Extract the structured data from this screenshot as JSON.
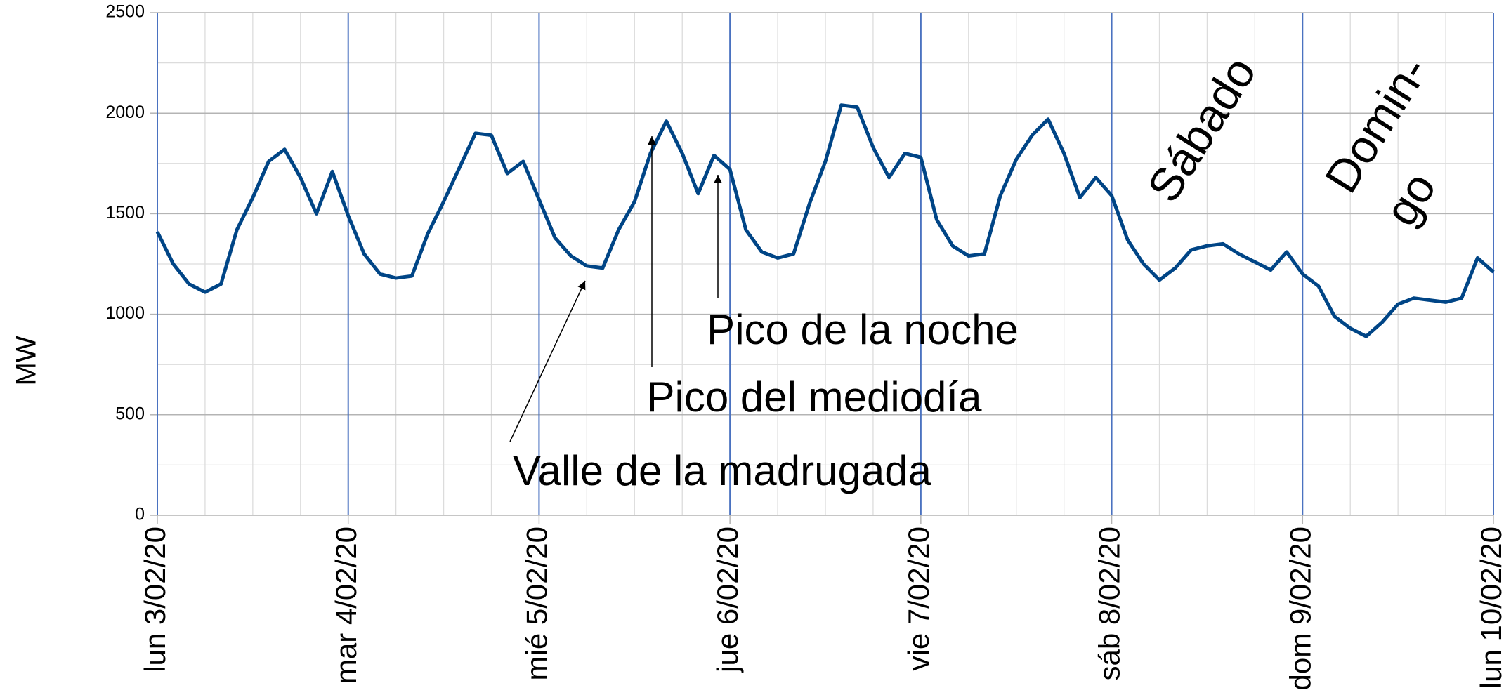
{
  "chart_data": {
    "type": "line",
    "ylabel": "MW",
    "x": [
      0,
      2,
      4,
      6,
      8,
      10,
      12,
      14,
      16,
      18,
      20,
      22,
      24,
      26,
      28,
      30,
      32,
      34,
      36,
      38,
      40,
      42,
      44,
      46,
      48,
      50,
      52,
      54,
      56,
      58,
      60,
      62,
      64,
      66,
      68,
      70,
      72,
      74,
      76,
      78,
      80,
      82,
      84,
      86,
      88,
      90,
      92,
      94,
      96,
      98,
      100,
      102,
      104,
      106,
      108,
      110,
      112,
      114,
      116,
      118,
      120,
      122,
      124,
      126,
      128,
      130,
      132,
      134,
      136,
      138,
      140,
      142,
      144,
      146,
      148,
      150,
      152,
      154,
      156,
      158,
      160,
      162,
      164,
      166,
      168
    ],
    "series": [
      {
        "name": "MW",
        "color": "#004586",
        "values": [
          1410,
          1250,
          1150,
          1110,
          1150,
          1420,
          1580,
          1760,
          1820,
          1680,
          1500,
          1710,
          1490,
          1300,
          1200,
          1180,
          1190,
          1400,
          1560,
          1730,
          1900,
          1890,
          1700,
          1760,
          1570,
          1380,
          1290,
          1240,
          1230,
          1420,
          1560,
          1800,
          1960,
          1800,
          1600,
          1790,
          1720,
          1420,
          1310,
          1280,
          1300,
          1550,
          1760,
          2040,
          2030,
          1830,
          1680,
          1800,
          1780,
          1470,
          1340,
          1290,
          1300,
          1590,
          1770,
          1890,
          1970,
          1800,
          1580,
          1680,
          1590,
          1370,
          1250,
          1170,
          1230,
          1320,
          1340,
          1350,
          1300,
          1260,
          1220,
          1310,
          1200,
          1140,
          990,
          930,
          890,
          960,
          1050,
          1080,
          1070,
          1060,
          1080,
          1280,
          1210
        ]
      }
    ],
    "xlim": [
      0,
      168
    ],
    "xticks": [
      {
        "value": 0,
        "label": "lun 3/02/20"
      },
      {
        "value": 24,
        "label": "mar 4/02/20"
      },
      {
        "value": 48,
        "label": "mié 5/02/20"
      },
      {
        "value": 72,
        "label": "jue 6/02/20"
      },
      {
        "value": 96,
        "label": "vie 7/02/20"
      },
      {
        "value": 120,
        "label": "sáb 8/02/20"
      },
      {
        "value": 144,
        "label": "dom 9/02/20"
      },
      {
        "value": 168,
        "label": "lun 10/02/20"
      }
    ],
    "ylim": [
      0,
      2500
    ],
    "yticks": [
      0,
      500,
      1000,
      1500,
      2000,
      2500
    ],
    "grid": true,
    "annotations": [
      "Pico de la noche",
      "Pico del mediodía",
      "Valle de la madrugada",
      "Sábado",
      "Domin-",
      "go"
    ]
  }
}
